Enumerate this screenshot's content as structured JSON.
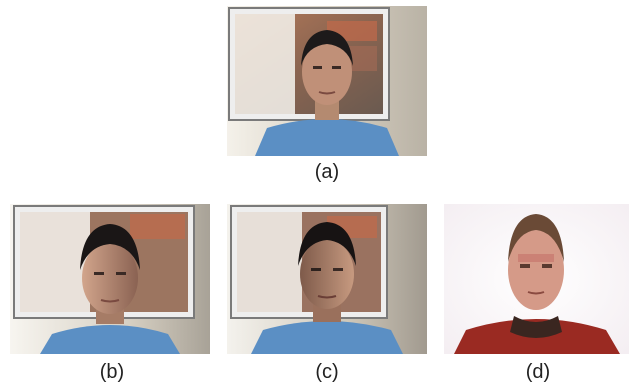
{
  "figure": {
    "panels": [
      {
        "id": "a",
        "caption": "(a)",
        "image": "man-photo-original"
      },
      {
        "id": "b",
        "caption": "(b)",
        "image": "man-photo-relit-left"
      },
      {
        "id": "c",
        "caption": "(c)",
        "image": "man-photo-relit-right"
      },
      {
        "id": "d",
        "caption": "(d)",
        "image": "man-photo-segmented-face"
      }
    ]
  }
}
